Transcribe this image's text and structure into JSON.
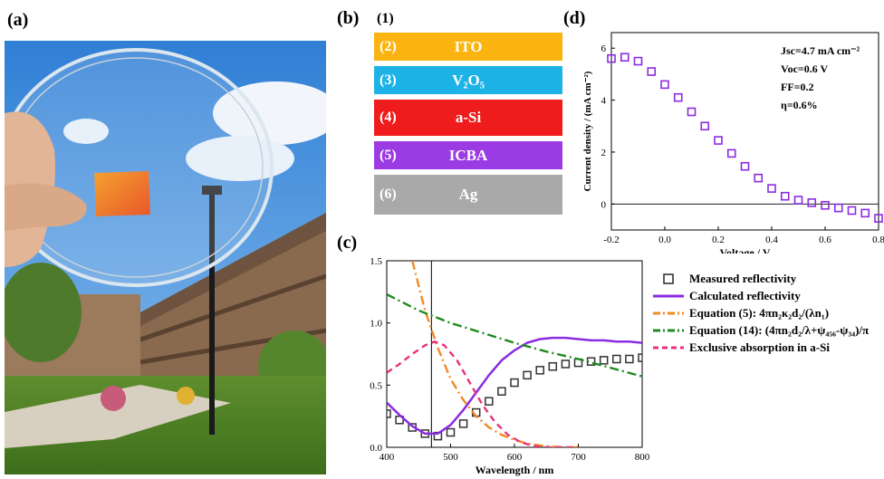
{
  "panels": {
    "a": "(a)",
    "b": "(b)",
    "c": "(c)",
    "d": "(d)"
  },
  "stack": {
    "top_label": "(1)",
    "layers": [
      {
        "num": "(2)",
        "name": "ITO",
        "color": "#FBB40F"
      },
      {
        "num": "(3)",
        "name": "V₂O₅",
        "color": "#1EB3E6"
      },
      {
        "num": "(4)",
        "name": "a-Si",
        "color": "#EE1C1C"
      },
      {
        "num": "(5)",
        "name": "ICBA",
        "color": "#9B3BE4"
      },
      {
        "num": "(6)",
        "name": "Ag",
        "color": "#A9A9A9"
      }
    ]
  },
  "chart_data": [
    {
      "panel": "d",
      "type": "scatter",
      "xlabel": "Voltage / V",
      "ylabel": "Current density / (mA cm⁻²)",
      "xlim": [
        -0.2,
        0.8
      ],
      "ylim": [
        -1,
        6.6
      ],
      "xticks": [
        "-0.2",
        "0.0",
        "0.2",
        "0.4",
        "0.6",
        "0.8"
      ],
      "yticks": [
        "0",
        "2",
        "4",
        "6"
      ],
      "marker_color": "#8B2BE2",
      "annotations": [
        "Jsc=4.7 mA cm⁻²",
        "Voc=0.6 V",
        "FF=0.2",
        "η=0.6%"
      ],
      "series": [
        {
          "x": [
            -0.2,
            -0.15,
            -0.1,
            -0.05,
            0.0,
            0.05,
            0.1,
            0.15,
            0.2,
            0.25,
            0.3,
            0.35,
            0.4,
            0.45,
            0.5,
            0.55,
            0.6,
            0.65,
            0.7,
            0.75,
            0.8
          ],
          "y": [
            5.6,
            5.65,
            5.5,
            5.1,
            4.6,
            4.1,
            3.55,
            3.0,
            2.45,
            1.95,
            1.45,
            1.0,
            0.6,
            0.3,
            0.15,
            0.05,
            -0.05,
            -0.15,
            -0.25,
            -0.35,
            -0.55
          ]
        }
      ]
    },
    {
      "panel": "c",
      "type": "line",
      "xlabel": "Wavelength / nm",
      "ylabel": "",
      "xlim": [
        400,
        800
      ],
      "ylim": [
        0,
        1.5
      ],
      "xticks": [
        "400",
        "500",
        "600",
        "700",
        "800"
      ],
      "yticks": [
        "0.0",
        "0.5",
        "1.0",
        "1.5"
      ],
      "vline_x": 470,
      "series": [
        {
          "name": "Measured reflectivity",
          "style": "square",
          "color": "#333333",
          "x": [
            400,
            420,
            440,
            460,
            480,
            500,
            520,
            540,
            560,
            580,
            600,
            620,
            640,
            660,
            680,
            700,
            720,
            740,
            760,
            780,
            800
          ],
          "y": [
            0.27,
            0.22,
            0.16,
            0.11,
            0.09,
            0.12,
            0.19,
            0.28,
            0.37,
            0.45,
            0.52,
            0.58,
            0.62,
            0.65,
            0.67,
            0.68,
            0.69,
            0.7,
            0.71,
            0.71,
            0.72
          ]
        },
        {
          "name": "Calculated reflectivity",
          "style": "solid",
          "color": "#8B2BE2",
          "x": [
            400,
            420,
            440,
            460,
            480,
            500,
            520,
            540,
            560,
            580,
            600,
            620,
            640,
            660,
            680,
            700,
            720,
            740,
            760,
            780,
            800
          ],
          "y": [
            0.36,
            0.26,
            0.17,
            0.11,
            0.11,
            0.18,
            0.3,
            0.44,
            0.58,
            0.7,
            0.78,
            0.84,
            0.87,
            0.88,
            0.88,
            0.87,
            0.86,
            0.86,
            0.85,
            0.85,
            0.84
          ]
        },
        {
          "name": "Equation (5): 4πn₂κ₂d₂/(λn₁)",
          "style": "dashdot",
          "color": "#F08A24",
          "x": [
            440,
            460,
            480,
            500,
            520,
            540,
            560,
            580,
            600,
            620,
            640,
            660,
            680,
            700
          ],
          "y": [
            1.5,
            1.1,
            0.8,
            0.55,
            0.38,
            0.25,
            0.16,
            0.1,
            0.06,
            0.03,
            0.015,
            0.005,
            0.0,
            0.0
          ]
        },
        {
          "name": "Equation (14): (4πn₂d₂/λ+ψ₄₅₆-ψ₃₄)/π",
          "style": "dashdot",
          "color": "#1F8A1F",
          "x": [
            400,
            450,
            500,
            550,
            600,
            650,
            700,
            750,
            800
          ],
          "y": [
            1.23,
            1.1,
            1.0,
            0.92,
            0.84,
            0.77,
            0.71,
            0.64,
            0.57
          ]
        },
        {
          "name": "Exclusive absorption in a-Si",
          "style": "dashed",
          "color": "#E8327C",
          "x": [
            400,
            420,
            440,
            460,
            475,
            490,
            510,
            530,
            550,
            570,
            590,
            610,
            630,
            650,
            680,
            700
          ],
          "y": [
            0.6,
            0.67,
            0.75,
            0.82,
            0.85,
            0.82,
            0.7,
            0.52,
            0.34,
            0.2,
            0.1,
            0.04,
            0.01,
            0.0,
            0.0,
            0.0
          ]
        }
      ]
    }
  ]
}
